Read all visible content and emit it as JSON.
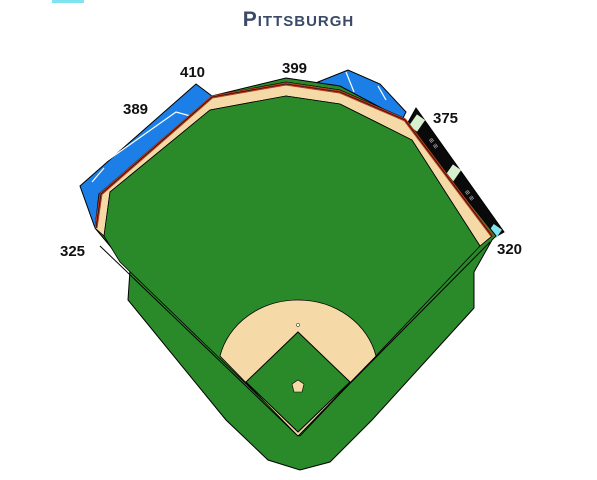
{
  "title": "Pittsburgh",
  "distances": {
    "left_field_line": "325",
    "left_center": "389",
    "deep_left_center": "410",
    "center_field": "399",
    "right_center": "375",
    "right_field_line": "320"
  },
  "colors": {
    "grass": "#2a8a2a",
    "infield_dirt": "#f5d9a6",
    "warning_track": "#f5d9a6",
    "outfield_wall": "#b03a1e",
    "stands": "#1c7fe8",
    "scoreboard": "#0a0a0a",
    "title": "#3a4a68",
    "outline": "#000000"
  }
}
